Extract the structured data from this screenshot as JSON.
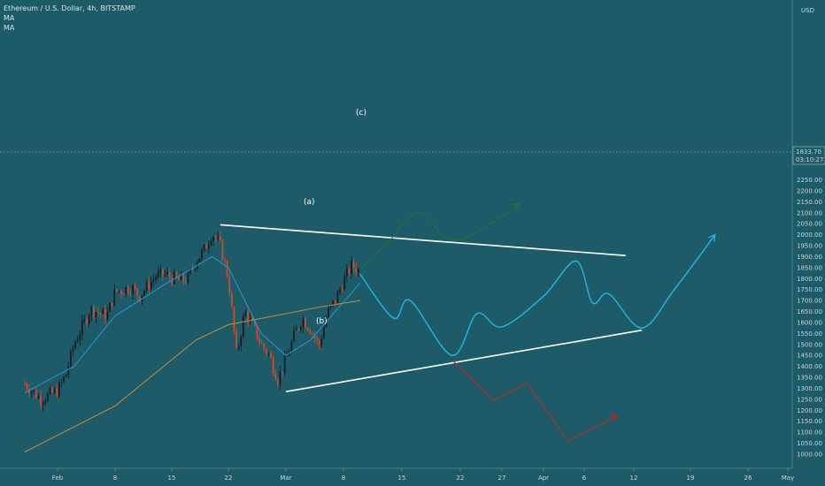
{
  "header": {
    "symbol_line": "Ethereum / U.S. Dollar, 4h, BITSTAMP",
    "indicators": [
      "MA",
      "MA"
    ]
  },
  "price_axis": {
    "currency": "USD",
    "last_price": "1833.70",
    "countdown": "03:10:27"
  },
  "colors": {
    "background": "#1e5b68",
    "candle_up": "#111d22",
    "candle_down": "#d04a2f",
    "ma_fast": "#2b96c8",
    "ma_slow": "#c98a3c",
    "trendline": "#ffffff",
    "projection_main": "#22b7de",
    "projection_bull": "#1b7a2c",
    "projection_bear": "#a8312a"
  },
  "chart_data": {
    "type": "candlestick",
    "title": "Ethereum / U.S. Dollar, 4h, BITSTAMP",
    "x_ticks": [
      "Feb",
      "8",
      "15",
      "22",
      "Mar",
      "8",
      "15",
      "22",
      "27",
      "Apr",
      "6",
      "12",
      "19",
      "26",
      "May"
    ],
    "y_ticks": [
      1000,
      1050,
      1100,
      1150,
      1200,
      1250,
      1300,
      1350,
      1400,
      1450,
      1500,
      1550,
      1600,
      1650,
      1700,
      1750,
      1800,
      1850,
      1900,
      1950,
      2000,
      2050,
      2100,
      2150,
      2200,
      2250
    ],
    "ylim": [
      965,
      2275
    ],
    "grid": false,
    "series": [
      {
        "name": "ETHUSD price (approx. path)",
        "points": [
          [
            "Jan 28",
            1320
          ],
          [
            "Jan 30",
            1250
          ],
          [
            "Feb 1",
            1290
          ],
          [
            "Feb 2",
            1360
          ],
          [
            "Feb 3",
            1500
          ],
          [
            "Feb 5",
            1660
          ],
          [
            "Feb 7",
            1630
          ],
          [
            "Feb 8",
            1740
          ],
          [
            "Feb 10",
            1760
          ],
          [
            "Feb 11",
            1720
          ],
          [
            "Feb 13",
            1810
          ],
          [
            "Feb 14",
            1820
          ],
          [
            "Feb 16",
            1790
          ],
          [
            "Feb 17",
            1800
          ],
          [
            "Feb 18",
            1880
          ],
          [
            "Feb 19",
            1930
          ],
          [
            "Feb 20",
            2010
          ],
          [
            "Feb 21",
            1950
          ],
          [
            "Feb 22",
            1800
          ],
          [
            "Feb 23",
            1450
          ],
          [
            "Feb 24",
            1650
          ],
          [
            "Feb 25",
            1580
          ],
          [
            "Feb 26",
            1500
          ],
          [
            "Feb 27",
            1450
          ],
          [
            "Feb 28",
            1340
          ],
          [
            "Mar 1",
            1430
          ],
          [
            "Mar 2",
            1540
          ],
          [
            "Mar 3",
            1620
          ],
          [
            "Mar 4",
            1570
          ],
          [
            "Mar 5",
            1490
          ],
          [
            "Mar 6",
            1640
          ],
          [
            "Mar 7",
            1700
          ],
          [
            "Mar 8",
            1790
          ],
          [
            "Mar 9",
            1860
          ],
          [
            "Mar 10",
            1833
          ]
        ]
      },
      {
        "name": "MA (fast)",
        "points": [
          [
            "Jan 28",
            1280
          ],
          [
            "Feb 3",
            1400
          ],
          [
            "Feb 8",
            1630
          ],
          [
            "Feb 14",
            1770
          ],
          [
            "Feb 20",
            1900
          ],
          [
            "Feb 22",
            1850
          ],
          [
            "Feb 26",
            1550
          ],
          [
            "Mar 1",
            1450
          ],
          [
            "Mar 4",
            1520
          ],
          [
            "Mar 7",
            1650
          ],
          [
            "Mar 10",
            1780
          ]
        ]
      },
      {
        "name": "MA (slow)",
        "points": [
          [
            "Jan 28",
            1010
          ],
          [
            "Feb 8",
            1220
          ],
          [
            "Feb 18",
            1520
          ],
          [
            "Feb 22",
            1590
          ],
          [
            "Mar 1",
            1640
          ],
          [
            "Mar 5",
            1670
          ],
          [
            "Mar 10",
            1700
          ]
        ]
      },
      {
        "name": "Upper trendline",
        "points": [
          [
            "Feb 21",
            2045
          ],
          [
            "Apr 11",
            1905
          ]
        ]
      },
      {
        "name": "Lower trendline",
        "points": [
          [
            "Mar 1",
            1285
          ],
          [
            "Apr 13",
            1565
          ]
        ]
      },
      {
        "name": "Main projection",
        "points": [
          [
            "Mar 10",
            1820
          ],
          [
            "Mar 14",
            1620
          ],
          [
            "Mar 16",
            1700
          ],
          [
            "Mar 21",
            1450
          ],
          [
            "Mar 24",
            1640
          ],
          [
            "Mar 27",
            1580
          ],
          [
            "Apr 1",
            1720
          ],
          [
            "Apr 5",
            1880
          ],
          [
            "Apr 7",
            1690
          ],
          [
            "Apr 9",
            1730
          ],
          [
            "Apr 13",
            1575
          ],
          [
            "Apr 17",
            1750
          ],
          [
            "Apr 22",
            2000
          ]
        ]
      },
      {
        "name": "Bullish alternate",
        "points": [
          [
            "Mar 10",
            1845
          ],
          [
            "Mar 13",
            1950
          ],
          [
            "Mar 17",
            2100
          ],
          [
            "Mar 21",
            1975
          ],
          [
            "Mar 26",
            2060
          ],
          [
            "Mar 29",
            2140
          ]
        ]
      },
      {
        "name": "Bearish alternate",
        "points": [
          [
            "Mar 21",
            1430
          ],
          [
            "Mar 26",
            1245
          ],
          [
            "Mar 30",
            1325
          ],
          [
            "Apr 4",
            1060
          ],
          [
            "Apr 10",
            1175
          ]
        ]
      }
    ],
    "annotations": [
      "(a)",
      "(b)",
      "(c)"
    ]
  },
  "labels": {
    "wave_a": "(a)",
    "wave_b": "(b)",
    "wave_c": "(c)"
  }
}
